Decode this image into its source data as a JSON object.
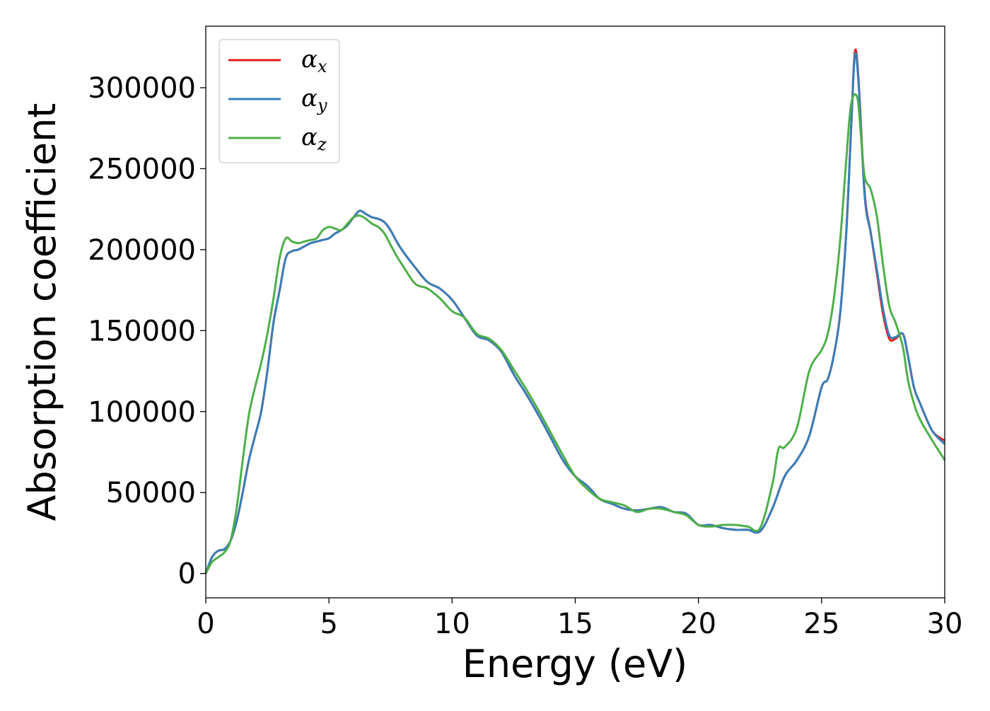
{
  "chart_data": {
    "type": "line",
    "title": "",
    "xlabel": "Energy (eV)",
    "ylabel": "Absorption coefficient",
    "xlim": [
      0,
      30
    ],
    "ylim": [
      -15000,
      338000
    ],
    "xticks": [
      0,
      5,
      10,
      15,
      20,
      25,
      30
    ],
    "xtick_labels": [
      "0",
      "5",
      "10",
      "15",
      "20",
      "25",
      "30"
    ],
    "yticks": [
      0,
      50000,
      100000,
      150000,
      200000,
      250000,
      300000
    ],
    "ytick_labels": [
      "0",
      "50000",
      "100000",
      "150000",
      "200000",
      "250000",
      "300000"
    ],
    "grid": false,
    "legend_position": "top-left",
    "series": [
      {
        "name": "α",
        "subscript": "x",
        "color": "#e41a1c",
        "x": [
          0,
          0.25,
          0.5,
          0.75,
          1,
          1.25,
          1.5,
          1.75,
          2,
          2.25,
          2.5,
          2.75,
          3,
          3.25,
          3.5,
          3.75,
          4,
          4.25,
          4.5,
          4.75,
          5,
          5.25,
          5.5,
          5.75,
          6,
          6.25,
          6.5,
          6.75,
          7,
          7.25,
          7.5,
          7.75,
          8,
          8.5,
          9,
          9.5,
          10,
          10.5,
          11,
          11.5,
          12,
          12.5,
          13,
          13.5,
          14,
          14.5,
          15,
          15.5,
          16,
          16.5,
          17,
          17.5,
          18,
          18.5,
          19,
          19.5,
          20,
          20.5,
          21,
          21.5,
          22,
          22.5,
          23,
          23.5,
          24,
          24.5,
          25,
          25.25,
          25.5,
          25.75,
          26,
          26.2,
          26.35,
          26.5,
          26.75,
          27,
          27.25,
          27.5,
          27.75,
          28,
          28.3,
          28.5,
          28.75,
          29,
          29.5,
          30
        ],
        "y": [
          0,
          10000,
          14000,
          15000,
          20000,
          32000,
          50000,
          70000,
          85000,
          100000,
          125000,
          155000,
          175000,
          195000,
          199000,
          200000,
          202000,
          204000,
          205000,
          206000,
          207000,
          210000,
          212000,
          215000,
          220000,
          224000,
          222000,
          220000,
          219000,
          217000,
          212000,
          205000,
          199000,
          189000,
          180000,
          176000,
          169000,
          158000,
          147000,
          144000,
          137000,
          123000,
          111000,
          98000,
          84000,
          70000,
          60000,
          54000,
          46000,
          43000,
          40000,
          39000,
          40000,
          41000,
          38000,
          37000,
          30000,
          30000,
          28000,
          27000,
          27000,
          26000,
          40000,
          60000,
          70000,
          85000,
          115000,
          120000,
          135000,
          160000,
          210000,
          275000,
          322000,
          305000,
          235000,
          210000,
          185000,
          160000,
          145000,
          145000,
          148000,
          135000,
          115000,
          105000,
          88000,
          82000
        ]
      },
      {
        "name": "α",
        "subscript": "y",
        "color": "#377eb8",
        "x": [
          0,
          0.25,
          0.5,
          0.75,
          1,
          1.25,
          1.5,
          1.75,
          2,
          2.25,
          2.5,
          2.75,
          3,
          3.25,
          3.5,
          3.75,
          4,
          4.25,
          4.5,
          4.75,
          5,
          5.25,
          5.5,
          5.75,
          6,
          6.25,
          6.5,
          6.75,
          7,
          7.25,
          7.5,
          7.75,
          8,
          8.5,
          9,
          9.5,
          10,
          10.5,
          11,
          11.5,
          12,
          12.5,
          13,
          13.5,
          14,
          14.5,
          15,
          15.5,
          16,
          16.5,
          17,
          17.5,
          18,
          18.5,
          19,
          19.5,
          20,
          20.5,
          21,
          21.5,
          22,
          22.5,
          23,
          23.5,
          24,
          24.5,
          25,
          25.25,
          25.5,
          25.75,
          26,
          26.2,
          26.35,
          26.5,
          26.75,
          27,
          27.25,
          27.5,
          27.75,
          28,
          28.3,
          28.5,
          28.75,
          29,
          29.5,
          30
        ],
        "y": [
          0,
          10000,
          14000,
          15000,
          20000,
          32000,
          50000,
          70000,
          85000,
          100000,
          125000,
          155000,
          175000,
          195000,
          199000,
          200000,
          202000,
          204000,
          205000,
          206000,
          207000,
          210000,
          212000,
          215000,
          220000,
          224000,
          222000,
          220000,
          219000,
          217000,
          212000,
          205000,
          199000,
          189000,
          180000,
          176000,
          169000,
          158000,
          147000,
          144000,
          137000,
          123000,
          111000,
          98000,
          84000,
          70000,
          60000,
          54000,
          46000,
          43000,
          40000,
          39000,
          40000,
          41000,
          38000,
          37000,
          30000,
          30000,
          28000,
          27000,
          27000,
          26000,
          40000,
          60000,
          70000,
          85000,
          115000,
          120000,
          135000,
          160000,
          210000,
          275000,
          320000,
          303000,
          233000,
          210000,
          187000,
          163000,
          147000,
          146000,
          148000,
          135000,
          115000,
          105000,
          88000,
          80000
        ]
      },
      {
        "name": "α",
        "subscript": "z",
        "color": "#4daf4a",
        "x": [
          0,
          0.25,
          0.5,
          0.75,
          1,
          1.25,
          1.5,
          1.75,
          2,
          2.25,
          2.5,
          2.75,
          3,
          3.25,
          3.5,
          3.75,
          4,
          4.25,
          4.5,
          4.75,
          5,
          5.25,
          5.5,
          5.75,
          6,
          6.25,
          6.5,
          6.75,
          7,
          7.25,
          7.5,
          7.75,
          8,
          8.5,
          9,
          9.5,
          10,
          10.5,
          11,
          11.5,
          12,
          12.5,
          13,
          13.5,
          14,
          14.5,
          15,
          15.5,
          16,
          16.5,
          17,
          17.5,
          18,
          18.5,
          19,
          19.5,
          20,
          20.5,
          21,
          21.5,
          22,
          22.5,
          23,
          23.25,
          23.5,
          24,
          24.5,
          25,
          25.25,
          25.5,
          25.75,
          26,
          26.2,
          26.45,
          26.6,
          26.75,
          27,
          27.25,
          27.5,
          27.75,
          28,
          28.3,
          28.5,
          28.75,
          29,
          29.5,
          30
        ],
        "y": [
          0,
          7000,
          10000,
          13000,
          20000,
          40000,
          70000,
          98000,
          115000,
          130000,
          148000,
          170000,
          195000,
          207000,
          205000,
          204000,
          205000,
          206000,
          207000,
          212000,
          214000,
          213000,
          212000,
          216000,
          220000,
          221000,
          219000,
          216000,
          214000,
          210000,
          203000,
          196000,
          190000,
          179000,
          176000,
          170000,
          162000,
          158000,
          148000,
          145000,
          138000,
          126000,
          114000,
          101000,
          87000,
          73000,
          60000,
          52000,
          46000,
          44000,
          42000,
          38000,
          40000,
          40000,
          38000,
          36000,
          30000,
          29000,
          30000,
          30000,
          29000,
          28000,
          55000,
          77000,
          78000,
          90000,
          125000,
          138000,
          148000,
          170000,
          205000,
          255000,
          290000,
          294000,
          270000,
          245000,
          237000,
          220000,
          190000,
          165000,
          155000,
          140000,
          120000,
          105000,
          95000,
          82000,
          70000
        ]
      }
    ]
  }
}
